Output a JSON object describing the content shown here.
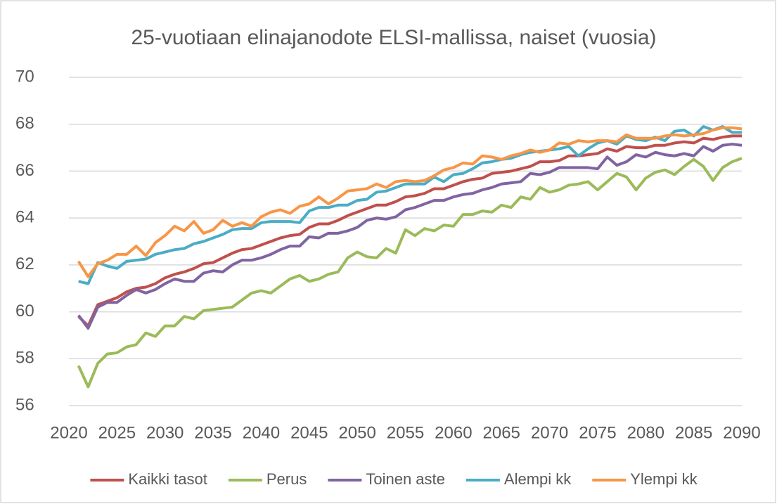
{
  "chart_data": {
    "type": "line",
    "title": "25-vuotiaan elinajanodote ELSI-mallissa, naiset (vuosia)",
    "x": [
      2021,
      2022,
      2023,
      2024,
      2025,
      2026,
      2027,
      2028,
      2029,
      2030,
      2031,
      2032,
      2033,
      2034,
      2035,
      2036,
      2037,
      2038,
      2039,
      2040,
      2041,
      2042,
      2043,
      2044,
      2045,
      2046,
      2047,
      2048,
      2049,
      2050,
      2051,
      2052,
      2053,
      2054,
      2055,
      2056,
      2057,
      2058,
      2059,
      2060,
      2061,
      2062,
      2063,
      2064,
      2065,
      2066,
      2067,
      2068,
      2069,
      2070,
      2071,
      2072,
      2073,
      2074,
      2075,
      2076,
      2077,
      2078,
      2079,
      2080,
      2081,
      2082,
      2083,
      2084,
      2085,
      2086,
      2087,
      2088,
      2089,
      2090
    ],
    "xlim": [
      2020,
      2090
    ],
    "xticks": [
      2020,
      2025,
      2030,
      2035,
      2040,
      2045,
      2050,
      2055,
      2060,
      2065,
      2070,
      2075,
      2080,
      2085,
      2090
    ],
    "ylim": [
      56,
      70
    ],
    "yticks": [
      56,
      58,
      60,
      62,
      64,
      66,
      68,
      70
    ],
    "grid": true,
    "legend": "bottom",
    "series": [
      {
        "name": "Kaikki tasot",
        "color": "#c0504d",
        "values": [
          59.8,
          59.4,
          60.3,
          60.45,
          60.6,
          60.85,
          61.0,
          61.05,
          61.2,
          61.45,
          61.6,
          61.7,
          61.85,
          62.05,
          62.1,
          62.3,
          62.5,
          62.65,
          62.7,
          62.85,
          63.0,
          63.15,
          63.25,
          63.3,
          63.6,
          63.75,
          63.75,
          63.9,
          64.1,
          64.25,
          64.4,
          64.55,
          64.55,
          64.7,
          64.9,
          64.95,
          65.05,
          65.25,
          65.25,
          65.4,
          65.55,
          65.65,
          65.7,
          65.9,
          65.95,
          66.0,
          66.1,
          66.2,
          66.4,
          66.4,
          66.45,
          66.65,
          66.65,
          66.7,
          66.75,
          66.95,
          66.85,
          67.05,
          67.0,
          67.0,
          67.1,
          67.1,
          67.2,
          67.25,
          67.2,
          67.4,
          67.35,
          67.45,
          67.5,
          67.5
        ]
      },
      {
        "name": "Perus",
        "color": "#9bbb59",
        "values": [
          57.7,
          56.8,
          57.8,
          58.2,
          58.25,
          58.5,
          58.6,
          59.1,
          58.95,
          59.4,
          59.4,
          59.8,
          59.7,
          60.05,
          60.1,
          60.15,
          60.2,
          60.5,
          60.8,
          60.9,
          60.8,
          61.1,
          61.4,
          61.55,
          61.3,
          61.4,
          61.6,
          61.7,
          62.3,
          62.55,
          62.35,
          62.3,
          62.7,
          62.5,
          63.5,
          63.25,
          63.55,
          63.45,
          63.7,
          63.65,
          64.15,
          64.15,
          64.3,
          64.25,
          64.55,
          64.45,
          64.9,
          64.8,
          65.3,
          65.1,
          65.2,
          65.4,
          65.45,
          65.55,
          65.2,
          65.55,
          65.9,
          65.75,
          65.2,
          65.7,
          65.95,
          66.05,
          65.85,
          66.2,
          66.5,
          66.2,
          65.6,
          66.15,
          66.4,
          66.55
        ]
      },
      {
        "name": "Toinen aste",
        "color": "#8064a2",
        "values": [
          59.85,
          59.3,
          60.2,
          60.4,
          60.4,
          60.7,
          60.95,
          60.8,
          60.95,
          61.2,
          61.4,
          61.3,
          61.3,
          61.65,
          61.75,
          61.7,
          62.0,
          62.2,
          62.2,
          62.3,
          62.45,
          62.65,
          62.8,
          62.8,
          63.2,
          63.15,
          63.35,
          63.35,
          63.45,
          63.6,
          63.9,
          64.0,
          63.95,
          64.05,
          64.35,
          64.45,
          64.6,
          64.75,
          64.75,
          64.9,
          65.0,
          65.05,
          65.2,
          65.3,
          65.45,
          65.5,
          65.55,
          65.9,
          65.85,
          65.95,
          66.15,
          66.15,
          66.15,
          66.15,
          66.1,
          66.6,
          66.25,
          66.4,
          66.7,
          66.6,
          66.8,
          66.7,
          66.65,
          66.75,
          66.65,
          67.05,
          66.85,
          67.1,
          67.15,
          67.1
        ]
      },
      {
        "name": "Alempi kk",
        "color": "#4bacc6",
        "values": [
          61.3,
          61.2,
          62.1,
          61.95,
          61.85,
          62.15,
          62.2,
          62.25,
          62.45,
          62.55,
          62.65,
          62.7,
          62.9,
          63.0,
          63.15,
          63.3,
          63.5,
          63.55,
          63.55,
          63.8,
          63.85,
          63.85,
          63.85,
          63.8,
          64.3,
          64.45,
          64.45,
          64.55,
          64.55,
          64.75,
          64.8,
          65.1,
          65.15,
          65.3,
          65.45,
          65.45,
          65.45,
          65.75,
          65.55,
          65.85,
          65.9,
          66.1,
          66.35,
          66.4,
          66.5,
          66.55,
          66.7,
          66.8,
          66.85,
          66.9,
          66.95,
          67.05,
          66.65,
          66.95,
          67.2,
          67.3,
          67.15,
          67.5,
          67.35,
          67.3,
          67.45,
          67.3,
          67.7,
          67.75,
          67.5,
          67.9,
          67.75,
          67.9,
          67.65,
          67.65
        ]
      },
      {
        "name": "Ylempi kk",
        "color": "#f79646",
        "values": [
          62.15,
          61.5,
          62.05,
          62.2,
          62.45,
          62.45,
          62.8,
          62.4,
          62.95,
          63.25,
          63.65,
          63.45,
          63.85,
          63.35,
          63.5,
          63.9,
          63.65,
          63.8,
          63.65,
          64.05,
          64.25,
          64.35,
          64.2,
          64.5,
          64.6,
          64.9,
          64.6,
          64.85,
          65.15,
          65.2,
          65.25,
          65.45,
          65.3,
          65.55,
          65.6,
          65.55,
          65.6,
          65.8,
          66.05,
          66.15,
          66.35,
          66.3,
          66.65,
          66.6,
          66.5,
          66.65,
          66.75,
          66.9,
          66.8,
          66.9,
          67.2,
          67.15,
          67.3,
          67.25,
          67.3,
          67.3,
          67.25,
          67.55,
          67.4,
          67.4,
          67.4,
          67.5,
          67.55,
          67.5,
          67.55,
          67.6,
          67.75,
          67.85,
          67.85,
          67.8
        ]
      }
    ]
  }
}
